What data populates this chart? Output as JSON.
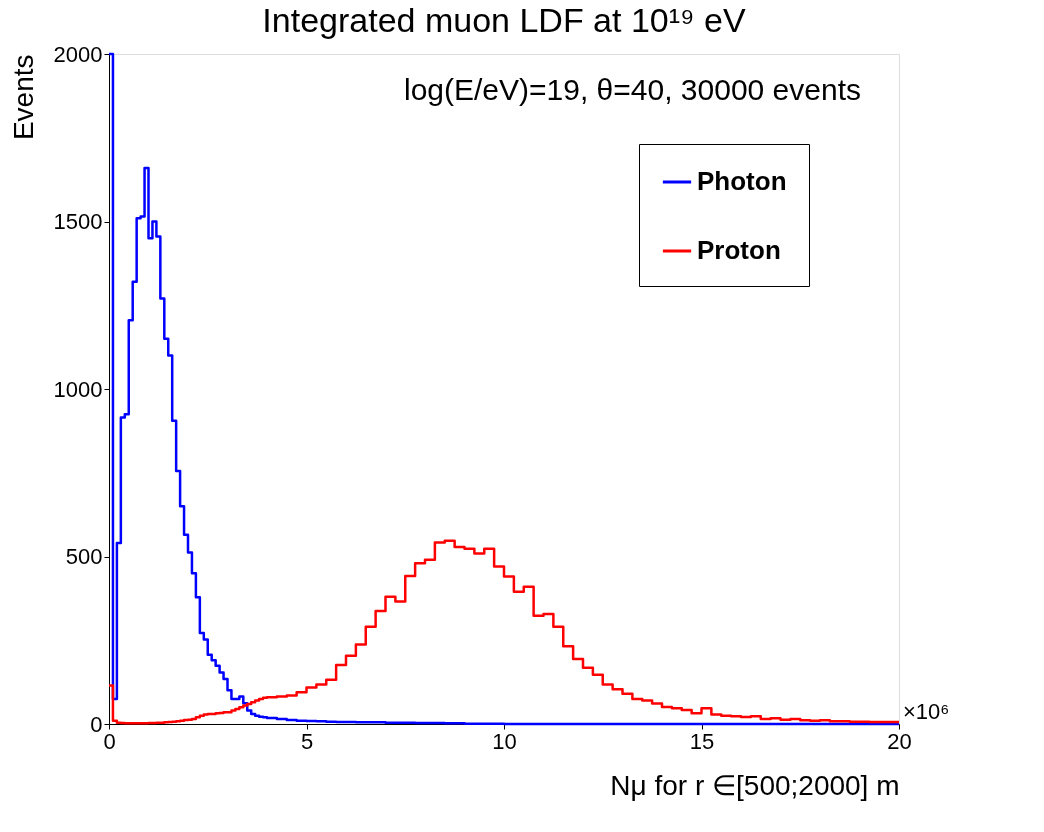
{
  "chart_data": {
    "type": "histogram",
    "title": "Integrated muon LDF at 10¹⁹ eV",
    "xlabel": "Nμ for r ∈[500;2000] m",
    "ylabel": "Events",
    "annotations": [
      "log(E/eV)=19, θ=40, 30000 events",
      "×10⁶"
    ],
    "bins": [
      0,
      0.1,
      0.2,
      0.3,
      0.4,
      0.5,
      0.6,
      0.7,
      0.8,
      0.9,
      1.0,
      1.1,
      1.2,
      1.3,
      1.4,
      1.5,
      1.6,
      1.7,
      1.8,
      1.9,
      2.0,
      2.1,
      2.2,
      2.3,
      2.4,
      2.5,
      2.6,
      2.7,
      2.8,
      2.9,
      3.0,
      3.1,
      3.2,
      3.3,
      3.4,
      3.5,
      3.6,
      3.7,
      3.8,
      3.9,
      4.0,
      4.25,
      4.5,
      4.75,
      5.0,
      5.25,
      5.5,
      5.75,
      6.0,
      6.25,
      6.5,
      6.75,
      7.0,
      7.25,
      7.5,
      7.75,
      8.0,
      8.25,
      8.5,
      8.75,
      9.0,
      9.25,
      9.5,
      9.75,
      10.0,
      10.25,
      10.5,
      10.75,
      11.0,
      11.25,
      11.5,
      11.75,
      12.0,
      12.25,
      12.5,
      12.75,
      13.0,
      13.25,
      13.5,
      13.75,
      14.0,
      14.25,
      14.5,
      14.75,
      15.0,
      15.25,
      15.5,
      15.75,
      16.0,
      16.25,
      16.5,
      16.75,
      17.0,
      17.25,
      17.5,
      17.75,
      18.0,
      18.25,
      18.5,
      18.75,
      19.0,
      19.25,
      19.5,
      19.75,
      20.0
    ],
    "series": [
      {
        "name": "Photon",
        "color": "#0000ff",
        "values": [
          2000,
          75,
          540,
          915,
          925,
          1205,
          1320,
          1510,
          1515,
          1660,
          1450,
          1500,
          1455,
          1270,
          1150,
          1100,
          905,
          755,
          650,
          565,
          512,
          450,
          378,
          272,
          252,
          207,
          190,
          174,
          154,
          134,
          101,
          75,
          75,
          82,
          62,
          40,
          30,
          25,
          22,
          20,
          18,
          15,
          12,
          10,
          9,
          8,
          7,
          6,
          6,
          5,
          5,
          5,
          4,
          4,
          4,
          3,
          3,
          3,
          2,
          2,
          1,
          1,
          1,
          1,
          0,
          0,
          0,
          0,
          0,
          0,
          0,
          0,
          0,
          0,
          0,
          0,
          0,
          0,
          0,
          0,
          0,
          0,
          0,
          0,
          0,
          0,
          0,
          0,
          0,
          0,
          0,
          0,
          0,
          0,
          0,
          0,
          0,
          0,
          0,
          0,
          0,
          0,
          0,
          0
        ]
      },
      {
        "name": "Proton",
        "color": "#ff0000",
        "values": [
          115,
          10,
          4,
          3,
          2,
          2,
          2,
          2,
          2,
          2,
          3,
          3,
          4,
          4,
          5,
          6,
          7,
          8,
          10,
          12,
          13,
          15,
          20,
          25,
          28,
          30,
          30,
          32,
          33,
          35,
          35,
          40,
          45,
          50,
          55,
          60,
          65,
          70,
          75,
          78,
          80,
          82,
          85,
          95,
          109,
          118,
          132,
          176,
          204,
          237,
          290,
          337,
          380,
          366,
          442,
          480,
          490,
          542,
          547,
          528,
          523,
          509,
          523,
          470,
          440,
          395,
          410,
          323,
          328,
          290,
          232,
          194,
          168,
          147,
          118,
          104,
          90,
          75,
          70,
          61,
          51,
          47,
          42,
          32,
          47,
          28,
          25,
          23,
          21,
          23,
          15,
          17,
          13,
          15,
          11,
          10,
          11,
          8,
          8,
          7,
          7,
          6,
          6,
          6
        ]
      }
    ],
    "xlim": [
      0,
      20
    ],
    "ylim": [
      0,
      2000
    ],
    "xticks": [
      0,
      5,
      10,
      15,
      20
    ],
    "yticks": [
      0,
      500,
      1000,
      1500,
      2000
    ],
    "grid": false,
    "legend": "top right"
  }
}
